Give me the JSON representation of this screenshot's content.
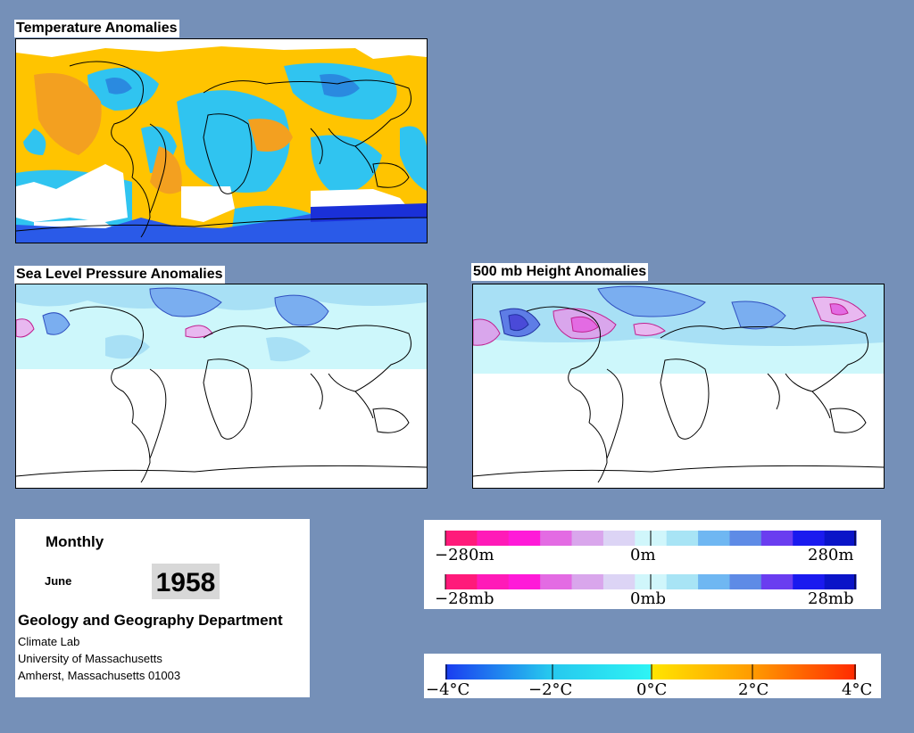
{
  "panels": {
    "temperature": {
      "title": "Temperature Anomalies"
    },
    "slp": {
      "title": "Sea Level Pressure Anomalies"
    },
    "height": {
      "title": "500 mb Height Anomalies"
    }
  },
  "info": {
    "frequency": "Monthly",
    "month": "June",
    "year": "1958",
    "department": "Geology and Geography Department",
    "lab": "Climate Lab",
    "university": "University of Massachusetts",
    "address": "Amherst, Massachusetts 01003"
  },
  "legends": {
    "height": {
      "labels": [
        "−280m",
        "0m",
        "280m"
      ],
      "colors": [
        "#ff1a7a",
        "#ff1ab8",
        "#ff1ad8",
        "#e36be3",
        "#d9a6ec",
        "#dcd4f5",
        "#d0f6fb",
        "#a8e4f5",
        "#6fb7f2",
        "#5e8be6",
        "#6a3df0",
        "#1a1aef",
        "#0a14c8"
      ]
    },
    "slp": {
      "labels": [
        "−28mb",
        "0mb",
        "28mb"
      ],
      "colors": [
        "#ff1a7a",
        "#ff1ab8",
        "#ff1ad8",
        "#e36be3",
        "#d9a6ec",
        "#dcd4f5",
        "#d0f6fb",
        "#a8e4f5",
        "#6fb7f2",
        "#5e8be6",
        "#6a3df0",
        "#1a1aef",
        "#0a14c8"
      ]
    },
    "temperature": {
      "labels": [
        "−4°C",
        "−2°C",
        "0°C",
        "2°C",
        "4°C"
      ],
      "gradient": [
        "#1a3cf0",
        "#26c6ee",
        "#2ef4f4",
        "#ffe600",
        "#ff9a00",
        "#ff2a00"
      ]
    }
  },
  "colors": {
    "background": "#7590b8",
    "warm": "#ffc400",
    "warm_strong": "#f3a020",
    "cool": "#30c4f0",
    "cool_strong": "#2a8ae0",
    "ocean_light": "#cdf7fb",
    "ocean_mid": "#a8e0f5"
  }
}
